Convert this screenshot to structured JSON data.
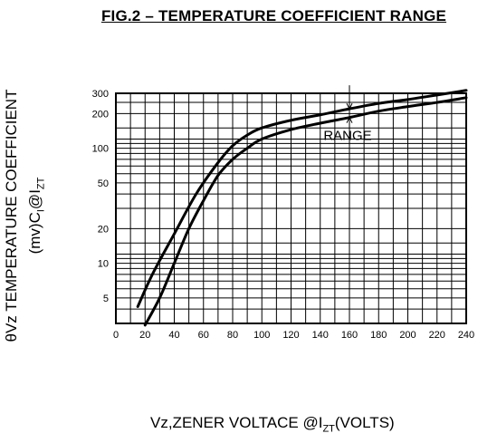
{
  "chart_data": {
    "type": "line",
    "title": "FIG.2 – TEMPERATURE COEFFICIENT RANGE",
    "ylabel_line1": "θVz TEMPERATURE COEFFICIENT",
    "ylabel_line2_main": "(mv)C",
    "ylabel_line2_sub": "I",
    "ylabel_line2_at": "@I",
    "ylabel_line2_zt": "ZT",
    "xlabel_main": "Vz,ZENER VOLTACE @I",
    "xlabel_sub": "ZT",
    "xlabel_tail": "(VOLTS)",
    "xlim": [
      0,
      240
    ],
    "ylim": [
      3,
      300
    ],
    "yscale": "log",
    "x_ticks": [
      "0",
      "20",
      "40",
      "60",
      "80",
      "100",
      "120",
      "140",
      "160",
      "180",
      "200",
      "220",
      "240"
    ],
    "y_ticks": [
      "5",
      "10",
      "20",
      "50",
      "100",
      "200",
      "300"
    ],
    "grid": true,
    "annotation": "RANGE",
    "series": [
      {
        "x": [
          15,
          25,
          40,
          55,
          70,
          80,
          90,
          100,
          120,
          140,
          160,
          180,
          200,
          220,
          240
        ],
        "values": [
          4.2,
          8,
          18,
          40,
          75,
          105,
          130,
          150,
          175,
          195,
          220,
          245,
          265,
          290,
          318
        ]
      },
      {
        "x": [
          20,
          30,
          40,
          50,
          60,
          70,
          80,
          90,
          100,
          120,
          140,
          160,
          180,
          200,
          220,
          240
        ],
        "values": [
          2.9,
          5,
          10,
          20,
          35,
          58,
          80,
          100,
          120,
          145,
          165,
          185,
          210,
          230,
          250,
          275
        ]
      }
    ]
  }
}
